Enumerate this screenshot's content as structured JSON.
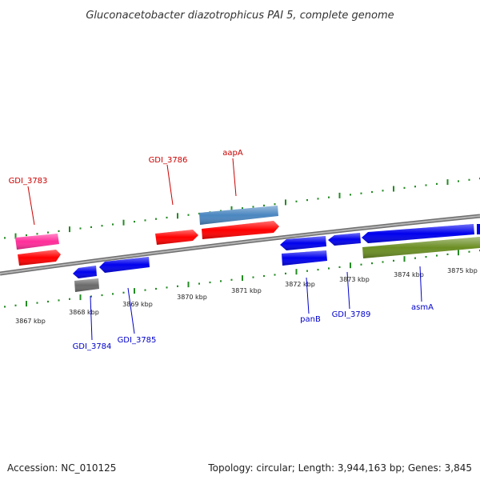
{
  "title": "Gluconacetobacter diazotrophicus PAI 5, complete genome",
  "footer": {
    "accession": "Accession: NC_010125",
    "topology": "Topology: circular; Length: 3,944,163 bp; Genes: 3,845"
  },
  "colors": {
    "red": "#ff0000",
    "blue": "#0000ee",
    "pink": "#ff2d9a",
    "steelblue": "#4a86c0",
    "gray": "#777777",
    "olive": "#6b8e23",
    "tick": "#228b22",
    "backbone": "#888888"
  },
  "ticks": {
    "upper": [
      "3867 kbp",
      "3868 kbp",
      "3869 kbp",
      "3870 kbp",
      "3871 kbp",
      "3872 kbp",
      "3873 kbp",
      "3874 kbp",
      "3875 kbp"
    ]
  },
  "genes": [
    {
      "name": "GDI_3783",
      "strand": "plus"
    },
    {
      "name": "GDI_3784",
      "strand": "minus"
    },
    {
      "name": "GDI_3785",
      "strand": "minus"
    },
    {
      "name": "GDI_3786",
      "strand": "plus"
    },
    {
      "name": "aapA",
      "strand": "plus"
    },
    {
      "name": "panB",
      "strand": "minus"
    },
    {
      "name": "GDI_3789",
      "strand": "minus"
    },
    {
      "name": "asmA",
      "strand": "minus"
    }
  ]
}
